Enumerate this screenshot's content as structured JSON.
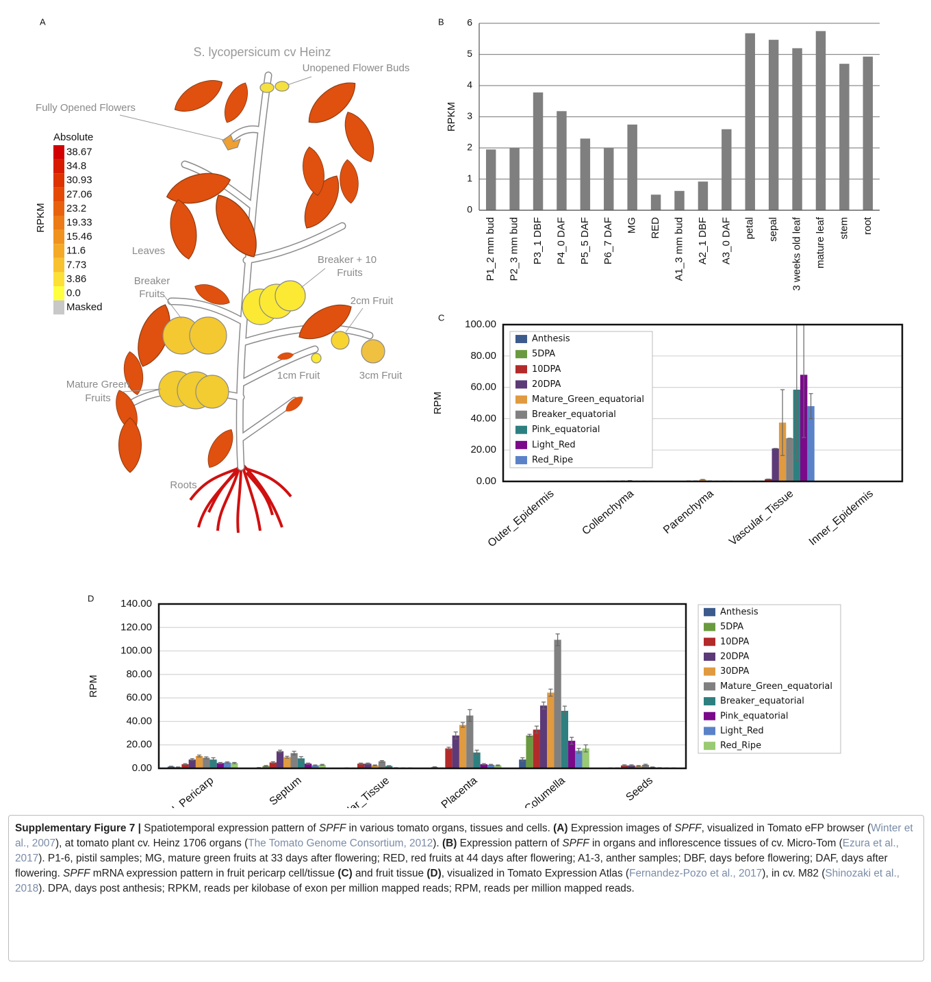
{
  "panel_a": {
    "label": "A",
    "title": "S. lycopersicum cv Heinz",
    "organs": {
      "unopened_buds": [
        "Unopened Flower Buds"
      ],
      "opened_flowers": [
        "Fully Opened Flowers"
      ],
      "leaves": [
        "Leaves"
      ],
      "breaker_10": [
        "Breaker + 10",
        "Fruits"
      ],
      "breaker": [
        "Breaker",
        "Fruits"
      ],
      "fruit_2cm": [
        "2cm Fruit"
      ],
      "fruit_1cm": [
        "1cm Fruit"
      ],
      "fruit_3cm": [
        "3cm Fruit"
      ],
      "mature_green": [
        "Mature Green",
        "Fruits"
      ],
      "roots": [
        "Roots"
      ]
    },
    "scale_title": "Absolute",
    "scale_axis": "RPKM",
    "scale": [
      {
        "label": "38.67",
        "color": "#d20000"
      },
      {
        "label": "34.8",
        "color": "#d81a00"
      },
      {
        "label": "30.93",
        "color": "#de3200"
      },
      {
        "label": "27.06",
        "color": "#e44a06"
      },
      {
        "label": "23.2",
        "color": "#e8620e"
      },
      {
        "label": "19.33",
        "color": "#ec7a16"
      },
      {
        "label": "15.46",
        "color": "#f0921e"
      },
      {
        "label": "11.6",
        "color": "#f4aa26"
      },
      {
        "label": "7.73",
        "color": "#f8c22e"
      },
      {
        "label": "3.86",
        "color": "#fce036"
      },
      {
        "label": "0.0",
        "color": "#ffff40"
      },
      {
        "label": "Masked",
        "color": "#c8c8c8"
      }
    ]
  },
  "chart_data": [
    {
      "type": "bar",
      "panel": "B",
      "ylabel": "RPKM",
      "categories": [
        "P1_2 mm bud",
        "P2_3 mm bud",
        "P3_1 DBF",
        "P4_0 DAF",
        "P5_5 DAF",
        "P6_7 DAF",
        "MG",
        "RED",
        "A1_3 mm bud",
        "A2_1 DBF",
        "A3_0 DAF",
        "petal",
        "sepal",
        "3 weeks old leaf",
        "mature leaf",
        "stem",
        "root"
      ],
      "values": [
        1.95,
        2.0,
        3.78,
        3.18,
        2.3,
        2.0,
        2.75,
        0.5,
        0.62,
        0.92,
        2.6,
        5.68,
        5.47,
        5.2,
        5.75,
        4.7,
        4.93
      ],
      "color": "#7f7f7f",
      "ylim": [
        0,
        6
      ],
      "yticks": [
        0,
        1,
        2,
        3,
        4,
        5,
        6
      ],
      "grid": true
    },
    {
      "type": "bar",
      "panel": "C",
      "ylabel": "RPM",
      "categories": [
        "Outer_Epidermis",
        "Collenchyma",
        "Parenchyma",
        "Vascular_Tissue",
        "Inner_Epidermis"
      ],
      "series": [
        {
          "name": "Anthesis",
          "color": "#3c5a8c",
          "values": [
            0.1,
            0.1,
            0.1,
            0.2,
            0.1
          ],
          "errors": [
            0,
            0,
            0,
            0,
            0
          ]
        },
        {
          "name": "5DPA",
          "color": "#6a9a40",
          "values": [
            0.1,
            0.1,
            0.1,
            0.2,
            0.1
          ],
          "errors": [
            0,
            0,
            0,
            0,
            0
          ]
        },
        {
          "name": "10DPA",
          "color": "#b22a2a",
          "values": [
            0.1,
            0.2,
            0.3,
            1.5,
            0.1
          ],
          "errors": [
            0,
            0,
            0,
            0,
            0
          ]
        },
        {
          "name": "20DPA",
          "color": "#5c3a78",
          "values": [
            0.1,
            0.2,
            0.3,
            21,
            0.1
          ],
          "errors": [
            0,
            0,
            0,
            0,
            0
          ]
        },
        {
          "name": "Mature_Green_equatorial",
          "color": "#e09a40",
          "values": [
            0.1,
            0.3,
            1.2,
            37.5,
            0.1
          ],
          "errors": [
            0,
            0,
            0,
            21,
            0
          ]
        },
        {
          "name": "Breaker_equatorial",
          "color": "#808080",
          "values": [
            0.1,
            0.5,
            0.3,
            27.5,
            0.1
          ],
          "errors": [
            0,
            0,
            0,
            0,
            0
          ]
        },
        {
          "name": "Pink_equatorial",
          "color": "#2e8080",
          "values": [
            0.1,
            0.2,
            0.2,
            58.5,
            0.1
          ],
          "errors": [
            0,
            0,
            0,
            45,
            0
          ]
        },
        {
          "name": "Light_Red",
          "color": "#7a0a8a",
          "values": [
            0.1,
            0.2,
            0.2,
            68,
            0.1
          ],
          "errors": [
            0,
            0,
            0,
            40,
            0
          ]
        },
        {
          "name": "Red_Ripe",
          "color": "#5b82c8",
          "values": [
            0.1,
            0.2,
            0.2,
            48,
            0.1
          ],
          "errors": [
            0,
            0,
            0,
            8,
            0
          ]
        }
      ],
      "ylim": [
        0,
        100
      ],
      "yticks": [
        {
          "value": 0,
          "label": "0.00"
        },
        {
          "value": 20,
          "label": "20.00"
        },
        {
          "value": 40,
          "label": "40.00"
        },
        {
          "value": 60,
          "label": "60.00"
        },
        {
          "value": 80,
          "label": "80.00"
        },
        {
          "value": 100,
          "label": "100.00"
        }
      ],
      "grid": true
    },
    {
      "type": "bar",
      "panel": "D",
      "ylabel": "RPM",
      "categories": [
        "Total_Pericarp",
        "Septum",
        "Locular_Tissue",
        "Placenta",
        "Columella",
        "Seeds"
      ],
      "series": [
        {
          "name": "Anthesis",
          "color": "#3c5a8c",
          "values": [
            1.5,
            0.5,
            0.3,
            1,
            7.5,
            0.3
          ],
          "errors": [
            0.3,
            0.2,
            0.1,
            0.3,
            1.5,
            0.1
          ]
        },
        {
          "name": "5DPA",
          "color": "#6a9a40",
          "values": [
            1,
            2,
            0.2,
            0.3,
            28,
            0.3
          ],
          "errors": [
            0.2,
            0.4,
            0.1,
            0.1,
            1,
            0.1
          ]
        },
        {
          "name": "10DPA",
          "color": "#b22a2a",
          "values": [
            3.5,
            5,
            4,
            17,
            33,
            2.5
          ],
          "errors": [
            0.5,
            0.6,
            0.5,
            1,
            3,
            0.5
          ]
        },
        {
          "name": "20DPA",
          "color": "#5c3a78",
          "values": [
            7.5,
            14.5,
            4,
            28,
            53.5,
            2.5
          ],
          "errors": [
            0.8,
            1,
            0.5,
            3,
            3,
            0.5
          ]
        },
        {
          "name": "30DPA",
          "color": "#e09a40",
          "values": [
            10.5,
            9.5,
            2.5,
            37,
            64.5,
            2
          ],
          "errors": [
            0.8,
            0.8,
            0.4,
            2,
            3,
            0.4
          ]
        },
        {
          "name": "Mature_Green_equatorial",
          "color": "#808080",
          "values": [
            9,
            13,
            6,
            45,
            109.5,
            3
          ],
          "errors": [
            0.8,
            1.5,
            0.6,
            5,
            5,
            0.5
          ]
        },
        {
          "name": "Breaker_equatorial",
          "color": "#2e8080",
          "values": [
            7.5,
            8.5,
            2,
            13.5,
            49,
            1
          ],
          "errors": [
            1.5,
            1.5,
            0.3,
            2,
            4,
            0.2
          ]
        },
        {
          "name": "Pink_equatorial",
          "color": "#7a0a8a",
          "values": [
            4.5,
            4,
            0.5,
            3.5,
            23.5,
            0.5
          ],
          "errors": [
            0.5,
            0.5,
            0.1,
            0.5,
            3,
            0.1
          ]
        },
        {
          "name": "Light_Red",
          "color": "#5b82c8",
          "values": [
            5,
            2.5,
            0.3,
            3,
            15,
            0.3
          ],
          "errors": [
            0.5,
            0.4,
            0.1,
            0.4,
            2,
            0.1
          ]
        },
        {
          "name": "Red_Ripe",
          "color": "#9acb74",
          "values": [
            4.5,
            3,
            0.3,
            2.5,
            17,
            0.3
          ],
          "errors": [
            0.5,
            0.4,
            0.1,
            0.4,
            3,
            0.1
          ]
        }
      ],
      "ylim": [
        0,
        140
      ],
      "yticks": [
        {
          "value": 0,
          "label": "0.00"
        },
        {
          "value": 20,
          "label": "20.00"
        },
        {
          "value": 40,
          "label": "40.00"
        },
        {
          "value": 60,
          "label": "60.00"
        },
        {
          "value": 80,
          "label": "80.00"
        },
        {
          "value": 100,
          "label": "100.00"
        },
        {
          "value": 120,
          "label": "120.00"
        },
        {
          "value": 140,
          "label": "140.00"
        }
      ],
      "grid": true
    }
  ],
  "caption": {
    "runs": [
      {
        "text": "Supplementary Figure 7 |",
        "style": "b"
      },
      {
        "text": " Spatiotemporal expression pattern of ",
        "style": "plain"
      },
      {
        "text": "SPFF",
        "style": "i"
      },
      {
        "text": " in various tomato organs, tissues and cells. ",
        "style": "plain"
      },
      {
        "text": "(A)",
        "style": "b"
      },
      {
        "text": " Expression images of ",
        "style": "plain"
      },
      {
        "text": "SPFF",
        "style": "i"
      },
      {
        "text": ", visualized in Tomato eFP browser (",
        "style": "plain"
      },
      {
        "text": "Winter et al., 2007",
        "style": "cite"
      },
      {
        "text": "), at tomato plant cv. Heinz 1706 organs (",
        "style": "plain"
      },
      {
        "text": "The Tomato Genome Consortium, 2012",
        "style": "cite"
      },
      {
        "text": "). ",
        "style": "plain"
      },
      {
        "text": "(B)",
        "style": "b"
      },
      {
        "text": " Expression pattern of ",
        "style": "plain"
      },
      {
        "text": "SPFF",
        "style": "i"
      },
      {
        "text": " in organs and inflorescence tissues of cv. Micro-Tom (",
        "style": "plain"
      },
      {
        "text": "Ezura et al., 2017",
        "style": "cite"
      },
      {
        "text": "). P1-6, pistil samples; MG, mature green fruits at 33 days after flowering; RED, red fruits at 44 days after flowering; A1-3, anther samples; DBF, days before flowering; DAF, days after flowering. ",
        "style": "plain"
      },
      {
        "text": "SPFF",
        "style": "i"
      },
      {
        "text": " mRNA expression pattern in fruit pericarp cell/tissue ",
        "style": "plain"
      },
      {
        "text": "(C)",
        "style": "b"
      },
      {
        "text": " and fruit tissue ",
        "style": "plain"
      },
      {
        "text": "(D)",
        "style": "b"
      },
      {
        "text": ", visualized in Tomato Expression Atlas (",
        "style": "plain"
      },
      {
        "text": "Fernandez-Pozo et al., 2017",
        "style": "cite"
      },
      {
        "text": "), in cv. M82 (",
        "style": "plain"
      },
      {
        "text": "Shinozaki et al., 2018",
        "style": "cite"
      },
      {
        "text": "). DPA, days post anthesis; RPKM, reads per kilobase of exon per million mapped reads; RPM, reads per million mapped reads.",
        "style": "plain"
      }
    ]
  }
}
